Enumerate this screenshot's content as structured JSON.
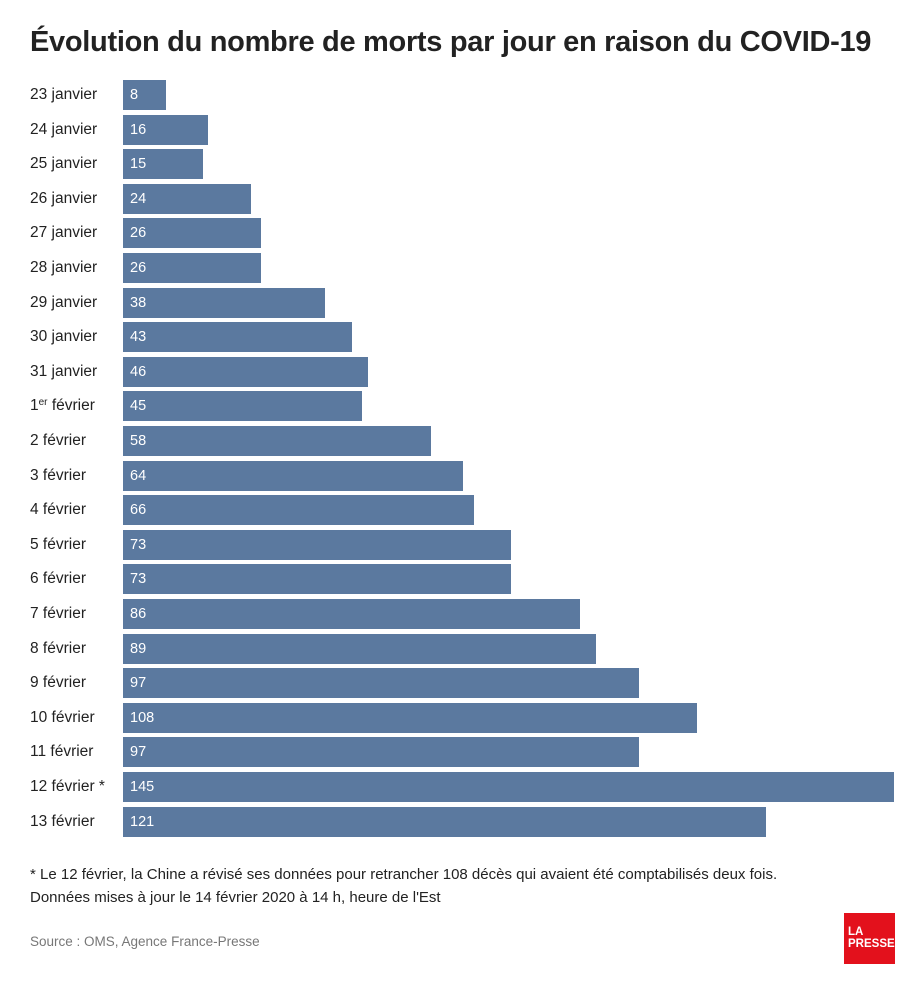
{
  "chart_data": {
    "type": "bar",
    "orientation": "horizontal",
    "title": "Évolution du nombre de morts par jour en raison du COVID-19",
    "categories": [
      "23 janvier",
      "24 janvier",
      "25 janvier",
      "26 janvier",
      "27 janvier",
      "28 janvier",
      "29 janvier",
      "30 janvier",
      "31 janvier",
      "1er février",
      "2 février",
      "3 février",
      "4 février",
      "5 février",
      "6 février",
      "7 février",
      "8 février",
      "9 février",
      "10 février",
      "11 février",
      "12 février *",
      "13 février"
    ],
    "values": [
      8,
      16,
      15,
      24,
      26,
      26,
      38,
      43,
      46,
      45,
      58,
      64,
      66,
      73,
      73,
      86,
      89,
      97,
      108,
      97,
      145,
      121
    ],
    "xlim": [
      0,
      145
    ],
    "xlabel": "",
    "ylabel": "",
    "grid": false,
    "bar_color": "#5b799f",
    "value_label_color": "#ffffff"
  },
  "footnotes": {
    "note1": "* Le 12 février, la Chine a révisé ses données pour retrancher 108 décès qui avaient été comptabilisés deux fois.",
    "note2": "Données mises à jour le 14 février 2020 à 14 h, heure de l'Est",
    "source": "Source : OMS, Agence France-Presse"
  },
  "logo": {
    "line1": "LA",
    "line2": "PRESSE",
    "color": "#e3111c"
  }
}
